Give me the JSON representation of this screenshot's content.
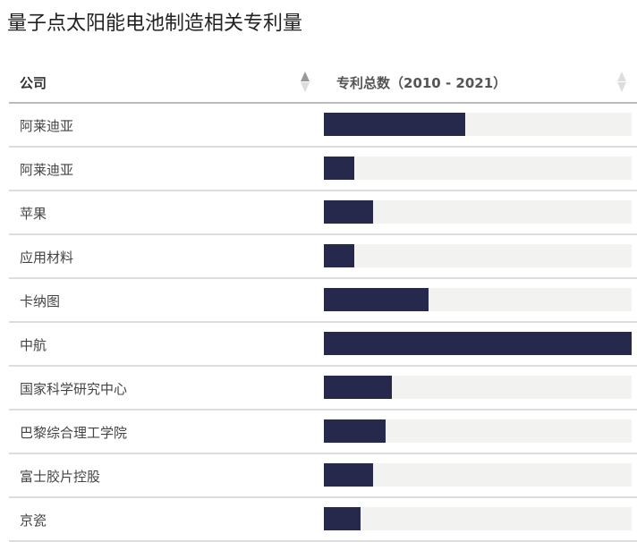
{
  "title": "量子点太阳能电池制造相关专利量",
  "columns": {
    "company": "公司",
    "patents": "专利总数（2010 - 2021）"
  },
  "colors": {
    "bar": "#26284c",
    "track": "#f2f2f0"
  },
  "chart_data": {
    "type": "bar",
    "orientation": "horizontal",
    "value_unit": "fraction of maximum (no values printed)",
    "categories": [
      "阿莱迪亚",
      "阿莱迪亚",
      "苹果",
      "应用材料",
      "卡纳图",
      "中航",
      "国家科学研究中心",
      "巴黎综合理工学院",
      "富士胶片控股",
      "京瓷"
    ],
    "values": [
      0.46,
      0.1,
      0.16,
      0.1,
      0.34,
      1.0,
      0.22,
      0.2,
      0.16,
      0.12
    ],
    "xlim": [
      0,
      1
    ]
  }
}
